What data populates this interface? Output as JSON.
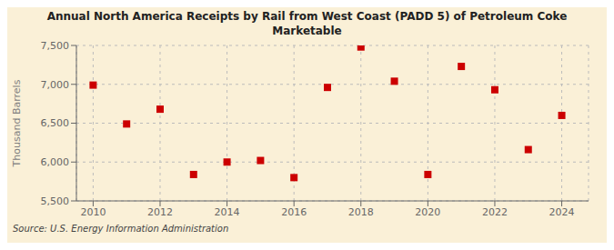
{
  "chart_data": {
    "type": "scatter",
    "title": "Annual North America Receipts by Rail from West Coast (PADD 5) of Petroleum Coke\nMarketable",
    "ylabel": "Thousand Barrels",
    "source": "Source: U.S. Energy Information Administration",
    "x": [
      2010,
      2011,
      2012,
      2013,
      2014,
      2015,
      2016,
      2017,
      2018,
      2019,
      2020,
      2021,
      2022,
      2023,
      2024
    ],
    "values": [
      6990,
      6490,
      6680,
      5840,
      6000,
      6020,
      5800,
      6960,
      7480,
      7040,
      5840,
      7230,
      6930,
      6160,
      6600
    ],
    "color": "#cc0000",
    "marker": "square",
    "xlim": [
      2009.5,
      2024.8
    ],
    "xticks": [
      2010,
      2012,
      2014,
      2016,
      2018,
      2020,
      2022,
      2024
    ],
    "ylim": [
      5500,
      7500
    ],
    "yticks": [
      {
        "value": 5500,
        "label": "5,500"
      },
      {
        "value": 6000,
        "label": "6,000"
      },
      {
        "value": 6500,
        "label": "6,500"
      },
      {
        "value": 7000,
        "label": "7,000"
      },
      {
        "value": 7500,
        "label": "7,500"
      }
    ],
    "grid": true
  }
}
